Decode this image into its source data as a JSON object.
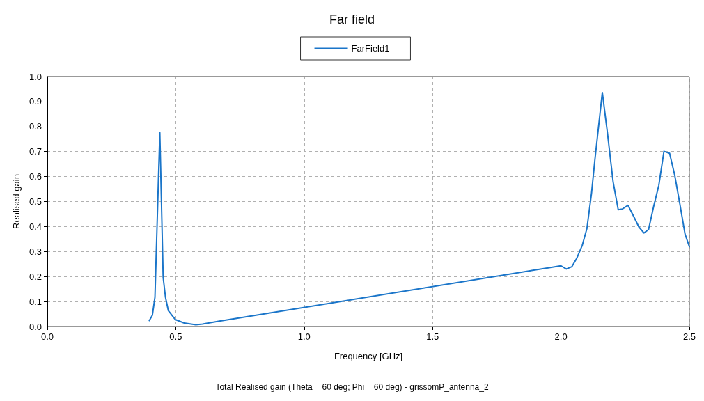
{
  "chart_data": {
    "type": "line",
    "title": "Far field",
    "xlabel": "Frequency [GHz]",
    "ylabel": "Realised gain",
    "annotations": [
      "Total Realised gain (Theta = 60 deg; Phi = 60 deg) - grissomP_antenna_2"
    ],
    "xlim": [
      0,
      2.5
    ],
    "ylim": [
      0,
      1
    ],
    "xticks": [
      {
        "value": 0,
        "label": "0.0"
      },
      {
        "value": 0.5,
        "label": "0.5"
      },
      {
        "value": 1,
        "label": "1.0"
      },
      {
        "value": 1.5,
        "label": "1.5"
      },
      {
        "value": 2,
        "label": "2.0"
      },
      {
        "value": 2.5,
        "label": "2.5"
      }
    ],
    "yticks": [
      {
        "value": 0,
        "label": "0.0"
      },
      {
        "value": 0.1,
        "label": "0.1"
      },
      {
        "value": 0.2,
        "label": "0.2"
      },
      {
        "value": 0.3,
        "label": "0.3"
      },
      {
        "value": 0.4,
        "label": "0.4"
      },
      {
        "value": 0.5,
        "label": "0.5"
      },
      {
        "value": 0.6,
        "label": "0.6"
      },
      {
        "value": 0.7,
        "label": "0.7"
      },
      {
        "value": 0.8,
        "label": "0.8"
      },
      {
        "value": 0.9,
        "label": "0.9"
      },
      {
        "value": 1,
        "label": "1.0"
      }
    ],
    "grid": true,
    "legend": "top",
    "marker": "none",
    "line_style": "solid",
    "series": [
      {
        "name": "FarField1",
        "color": "#1a75c9",
        "x": [
          0.397,
          0.409,
          0.419,
          0.438,
          0.451,
          0.46,
          0.471,
          0.498,
          0.533,
          0.578,
          0.604,
          0.666,
          1.946,
          2.0,
          2.021,
          2.042,
          2.061,
          2.083,
          2.101,
          2.119,
          2.132,
          2.161,
          2.181,
          2.203,
          2.223,
          2.239,
          2.261,
          2.283,
          2.303,
          2.323,
          2.341,
          2.361,
          2.381,
          2.401,
          2.423,
          2.443,
          2.463,
          2.483,
          2.5
        ],
        "values": [
          0.024,
          0.045,
          0.117,
          0.776,
          0.197,
          0.117,
          0.064,
          0.028,
          0.014,
          0.007,
          0.01,
          0.021,
          0.234,
          0.243,
          0.23,
          0.239,
          0.272,
          0.325,
          0.392,
          0.534,
          0.667,
          0.936,
          0.774,
          0.579,
          0.467,
          0.47,
          0.485,
          0.441,
          0.399,
          0.374,
          0.388,
          0.481,
          0.565,
          0.701,
          0.693,
          0.605,
          0.49,
          0.37,
          0.319
        ]
      }
    ]
  }
}
